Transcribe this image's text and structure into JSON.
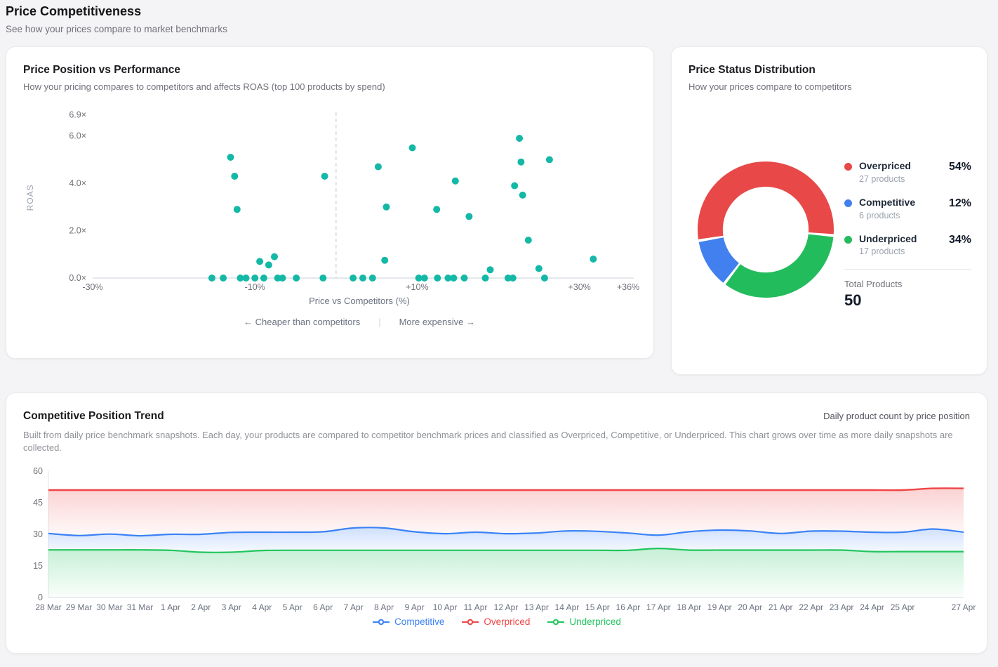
{
  "page": {
    "title": "Price Competitiveness",
    "subtitle": "See how your prices compare to market benchmarks"
  },
  "scatter_card": {
    "title": "Price Position vs Performance",
    "subtitle": "How your pricing compares to competitors and affects ROAS (top 100 products by spend)",
    "x_axis_title": "Price vs Competitors (%)",
    "caption_left": "← Cheaper than competitors",
    "caption_divider": "|",
    "caption_right": "More expensive →"
  },
  "donut_card": {
    "title": "Price Status Distribution",
    "subtitle": "How your prices compare to competitors"
  },
  "trend_card": {
    "title": "Competitive Position Trend",
    "right_label": "Daily product count by price position",
    "description": "Built from daily price benchmark snapshots. Each day, your products are compared to competitor benchmark prices and classified as Overpriced, Competitive, or Underpriced. This chart grows over time as more daily snapshots are collected."
  },
  "chart_data": [
    {
      "id": "scatter",
      "type": "scatter",
      "title": "Price Position vs Performance",
      "xlabel": "Price vs Competitors (%)",
      "ylabel": "ROAS",
      "xlim": [
        -30,
        36
      ],
      "ylim": [
        0,
        6.9
      ],
      "grid": false,
      "point_color": "#14b8a6",
      "zero_line_x": 0,
      "x_ticks": [
        {
          "v": -30,
          "label": "-30%"
        },
        {
          "v": -10,
          "label": "-10%"
        },
        {
          "v": 10,
          "label": "+10%"
        },
        {
          "v": 30,
          "label": "+30%"
        },
        {
          "v": 36,
          "label": "+36%"
        }
      ],
      "y_ticks": [
        {
          "v": 0,
          "label": "0.0×"
        },
        {
          "v": 2,
          "label": "2.0×"
        },
        {
          "v": 4,
          "label": "4.0×"
        },
        {
          "v": 6,
          "label": "6.0×"
        },
        {
          "v": 6.9,
          "label": "6.9×"
        }
      ],
      "points": [
        [
          -15.3,
          0
        ],
        [
          -13.9,
          0
        ],
        [
          -13,
          5.1
        ],
        [
          -12.5,
          4.3
        ],
        [
          -12.2,
          2.9
        ],
        [
          -11.8,
          0
        ],
        [
          -11.1,
          0
        ],
        [
          -10,
          0
        ],
        [
          -9.4,
          0.7
        ],
        [
          -8.9,
          0
        ],
        [
          -8.3,
          0.55
        ],
        [
          -7.6,
          0.9
        ],
        [
          -7.2,
          0
        ],
        [
          -6.6,
          0
        ],
        [
          -4.9,
          0
        ],
        [
          -1.6,
          0
        ],
        [
          -1.4,
          4.3
        ],
        [
          2.1,
          0
        ],
        [
          3.3,
          0
        ],
        [
          4.5,
          0
        ],
        [
          5.2,
          4.7
        ],
        [
          6,
          0.75
        ],
        [
          6.2,
          3
        ],
        [
          9.4,
          5.5
        ],
        [
          10.2,
          0
        ],
        [
          10.9,
          0
        ],
        [
          12.4,
          2.9
        ],
        [
          12.5,
          0
        ],
        [
          13.8,
          0
        ],
        [
          14.5,
          0
        ],
        [
          14.7,
          4.1
        ],
        [
          15.8,
          0
        ],
        [
          16.4,
          2.6
        ],
        [
          18.4,
          0
        ],
        [
          19,
          0.35
        ],
        [
          21.2,
          0
        ],
        [
          21.8,
          0
        ],
        [
          22,
          3.9
        ],
        [
          22.6,
          5.9
        ],
        [
          22.8,
          4.9
        ],
        [
          23,
          3.5
        ],
        [
          23.7,
          1.6
        ],
        [
          25,
          0.4
        ],
        [
          25.7,
          0
        ],
        [
          26.3,
          5
        ],
        [
          31.7,
          0.8
        ]
      ]
    },
    {
      "id": "donut",
      "type": "pie",
      "title": "Price Status Distribution",
      "inner_radius_ratio": 0.63,
      "start_angle": -5,
      "pad_angle": 2.4,
      "legend_position": "right",
      "slices": [
        {
          "label": "Overpriced",
          "count_label": "27 products",
          "count": 27,
          "pct": 54,
          "pct_label": "54%",
          "color": "#e84848"
        },
        {
          "label": "Competitive",
          "count_label": "6 products",
          "count": 6,
          "pct": 12,
          "pct_label": "12%",
          "color": "#4280f0"
        },
        {
          "label": "Underpriced",
          "count_label": "17 products",
          "count": 17,
          "pct": 34,
          "pct_label": "34%",
          "color": "#22bc5c"
        }
      ],
      "total_label": "Total Products",
      "total_value": "50"
    },
    {
      "id": "trend",
      "type": "area",
      "title": "Competitive Position Trend",
      "ylim": [
        0,
        60
      ],
      "y_ticks": [
        0,
        15,
        30,
        45,
        60
      ],
      "grid": false,
      "legend_position": "bottom",
      "categories": [
        "28 Mar",
        "29 Mar",
        "30 Mar",
        "31 Mar",
        "1 Apr",
        "2 Apr",
        "3 Apr",
        "4 Apr",
        "5 Apr",
        "6 Apr",
        "7 Apr",
        "8 Apr",
        "9 Apr",
        "10 Apr",
        "11 Apr",
        "12 Apr",
        "13 Apr",
        "14 Apr",
        "15 Apr",
        "16 Apr",
        "17 Apr",
        "18 Apr",
        "19 Apr",
        "20 Apr",
        "21 Apr",
        "22 Apr",
        "23 Apr",
        "24 Apr",
        "25 Apr",
        "26 Apr",
        "27 Apr"
      ],
      "tick_labels": [
        "28 Mar",
        "29 Mar",
        "30 Mar",
        "31 Mar",
        "1 Apr",
        "2 Apr",
        "3 Apr",
        "4 Apr",
        "5 Apr",
        "6 Apr",
        "7 Apr",
        "8 Apr",
        "9 Apr",
        "10 Apr",
        "11 Apr",
        "12 Apr",
        "13 Apr",
        "14 Apr",
        "15 Apr",
        "16 Apr",
        "17 Apr",
        "18 Apr",
        "19 Apr",
        "20 Apr",
        "21 Apr",
        "22 Apr",
        "23 Apr",
        "24 Apr",
        "25 Apr",
        "",
        "27 Apr"
      ],
      "series": [
        {
          "name": "Overpriced",
          "color": "#ef4444",
          "values": [
            51,
            51,
            51,
            51,
            51,
            51,
            51,
            51,
            51,
            51,
            51,
            51,
            51,
            51,
            51,
            51,
            51,
            51,
            51,
            51,
            51,
            51,
            51,
            51,
            51,
            51,
            51,
            51,
            51,
            51.8,
            51.8
          ]
        },
        {
          "name": "Competitive",
          "color": "#3b82f6",
          "values": [
            30.4,
            29.4,
            30.1,
            29.3,
            30,
            30,
            30.9,
            31,
            31,
            31.2,
            33,
            33,
            31.2,
            30.3,
            31,
            30.3,
            30.6,
            31.6,
            31.4,
            30.6,
            29.6,
            31.2,
            32,
            31.6,
            30.4,
            31.5,
            31.5,
            31,
            31,
            32.5,
            31
          ]
        },
        {
          "name": "Underpriced",
          "color": "#22c55e",
          "values": [
            22.6,
            22.6,
            22.6,
            22.6,
            22.4,
            21.5,
            21.5,
            22.3,
            22.4,
            22.4,
            22.4,
            22.4,
            22.4,
            22.4,
            22.4,
            22.4,
            22.4,
            22.4,
            22.4,
            22.4,
            23.3,
            22.5,
            22.5,
            22.5,
            22.5,
            22.5,
            22.5,
            21.8,
            21.8,
            21.8,
            21.8
          ]
        }
      ],
      "legend_order": [
        "Competitive",
        "Overpriced",
        "Underpriced"
      ]
    }
  ]
}
